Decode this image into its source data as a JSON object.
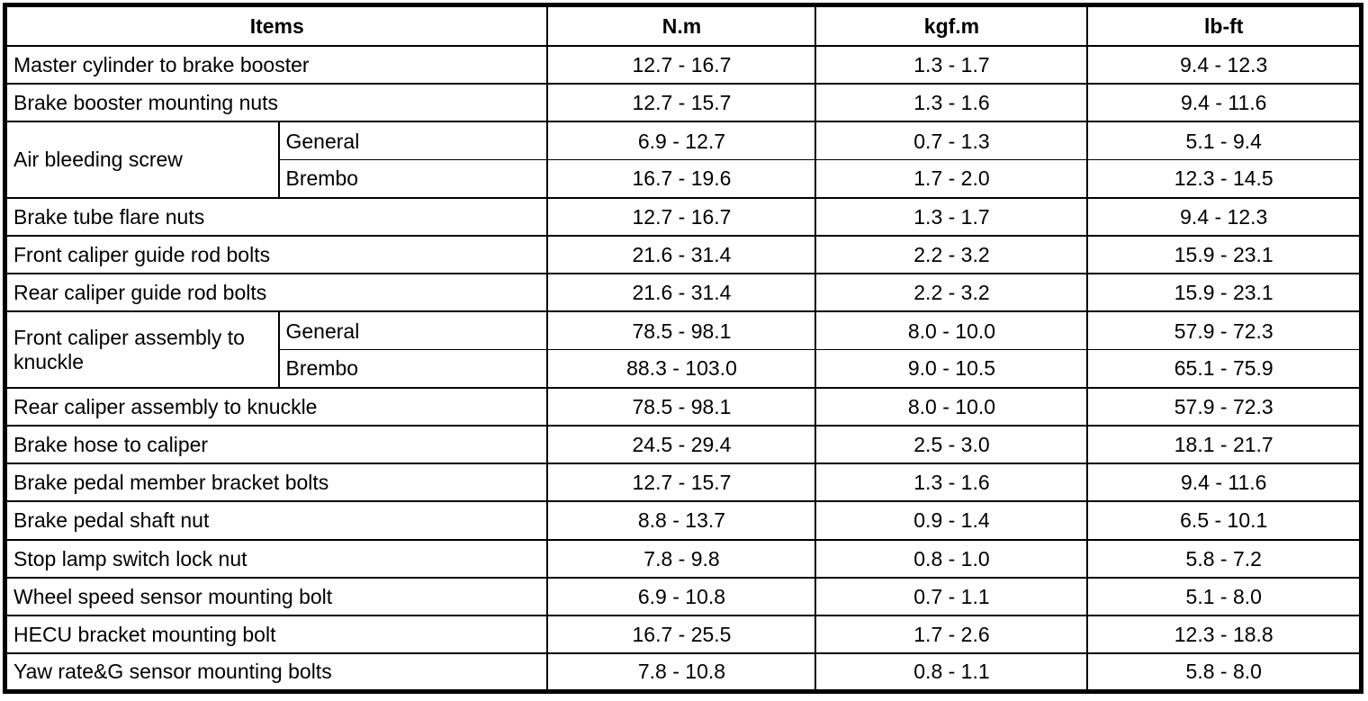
{
  "colors": {
    "border": "#000000",
    "background": "#ffffff",
    "text": "#000000"
  },
  "table": {
    "headers": {
      "items": "Items",
      "nm": "N.m",
      "kgfm": "kgf.m",
      "lbft": "lb-ft"
    },
    "rows": [
      {
        "item": "Master cylinder to brake booster",
        "nm": "12.7 - 16.7",
        "kgfm": "1.3 - 1.7",
        "lbft": "9.4 - 12.3"
      },
      {
        "item": "Brake booster mounting nuts",
        "nm": "12.7 - 15.7",
        "kgfm": "1.3 - 1.6",
        "lbft": "9.4 - 11.6"
      },
      {
        "item": "Air bleeding screw",
        "item_rowspan": 2,
        "variant": "General",
        "nm": "6.9 - 12.7",
        "kgfm": "0.7 - 1.3",
        "lbft": "5.1 - 9.4"
      },
      {
        "variant": "Brembo",
        "nm": "16.7 - 19.6",
        "kgfm": "1.7 - 2.0",
        "lbft": "12.3 - 14.5"
      },
      {
        "item": "Brake tube flare nuts",
        "nm": "12.7 - 16.7",
        "kgfm": "1.3 - 1.7",
        "lbft": "9.4 - 12.3"
      },
      {
        "item": "Front caliper guide rod bolts",
        "nm": "21.6 - 31.4",
        "kgfm": "2.2 - 3.2",
        "lbft": "15.9 - 23.1"
      },
      {
        "item": "Rear caliper guide rod bolts",
        "nm": "21.6 - 31.4",
        "kgfm": "2.2 - 3.2",
        "lbft": "15.9 - 23.1"
      },
      {
        "item": "Front caliper assembly to knuckle",
        "item_rowspan": 2,
        "variant": "General",
        "nm": "78.5 - 98.1",
        "kgfm": "8.0 - 10.0",
        "lbft": "57.9 - 72.3"
      },
      {
        "variant": "Brembo",
        "nm": "88.3 - 103.0",
        "kgfm": "9.0 - 10.5",
        "lbft": "65.1 - 75.9"
      },
      {
        "item": "Rear caliper assembly to knuckle",
        "nm": "78.5 - 98.1",
        "kgfm": "8.0 - 10.0",
        "lbft": "57.9 - 72.3"
      },
      {
        "item": "Brake hose to caliper",
        "nm": "24.5 - 29.4",
        "kgfm": "2.5 - 3.0",
        "lbft": "18.1 - 21.7"
      },
      {
        "item": "Brake pedal member bracket bolts",
        "nm": "12.7 - 15.7",
        "kgfm": "1.3 - 1.6",
        "lbft": "9.4 - 11.6"
      },
      {
        "item": "Brake pedal shaft nut",
        "nm": "8.8 - 13.7",
        "kgfm": "0.9 - 1.4",
        "lbft": "6.5 - 10.1"
      },
      {
        "item": "Stop lamp switch lock nut",
        "nm": "7.8 - 9.8",
        "kgfm": "0.8 - 1.0",
        "lbft": "5.8 - 7.2"
      },
      {
        "item": "Wheel speed sensor mounting bolt",
        "nm": "6.9 - 10.8",
        "kgfm": "0.7 - 1.1",
        "lbft": "5.1 - 8.0"
      },
      {
        "item": "HECU bracket mounting bolt",
        "nm": "16.7 - 25.5",
        "kgfm": "1.7 - 2.6",
        "lbft": "12.3 - 18.8"
      },
      {
        "item": "Yaw rate&G sensor mounting bolts",
        "nm": "7.8 - 10.8",
        "kgfm": "0.8 - 1.1",
        "lbft": "5.8 - 8.0"
      }
    ]
  }
}
